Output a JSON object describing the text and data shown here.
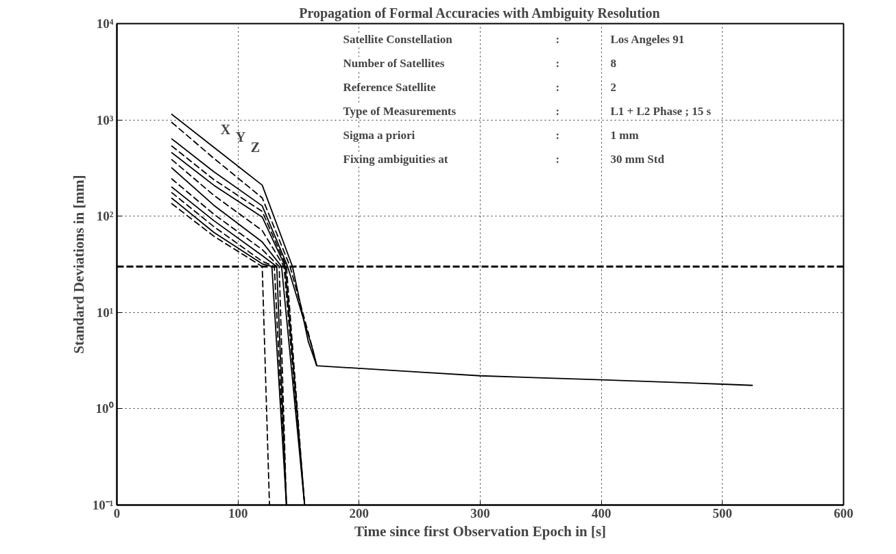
{
  "chart_data": {
    "type": "line",
    "title": "Propagation of Formal Accuracies with Ambiguity Resolution",
    "xlabel": "Time since first Observation Epoch in [s]",
    "ylabel": "Standard Deviations in [mm]",
    "log": "y",
    "xlim": [
      0,
      600
    ],
    "ylim": [
      0.1,
      10000
    ],
    "xticks": [
      0,
      100,
      200,
      300,
      400,
      500,
      600
    ],
    "yticks": [
      {
        "value": 0.1,
        "label": "10⁻¹"
      },
      {
        "value": 1,
        "label": "10⁰"
      },
      {
        "value": 10,
        "label": "10¹"
      },
      {
        "value": 100,
        "label": "10²"
      },
      {
        "value": 1000,
        "label": "10³"
      },
      {
        "value": 10000,
        "label": "10⁴"
      }
    ],
    "grid": true,
    "ref_lines": [
      {
        "axis": "y",
        "value": 30,
        "line_style": "dashed",
        "color": "#000000"
      }
    ],
    "annotations": [
      "X",
      "Y",
      "Z",
      "Satellite Constellation",
      ":",
      "Los Angeles 91",
      "Number of Satellites",
      ":",
      "8",
      "Reference Satellite",
      ":",
      "2",
      "Type of Measurements",
      ":",
      "L1 + L2 Phase ; 15 s",
      "Sigma a priori",
      ":",
      "1 mm",
      "Fixing ambiguities at",
      ":",
      "30 mm Std"
    ],
    "series": [
      {
        "color": "#000000",
        "line_style": "solid",
        "x": [
          45,
          80,
          120,
          145,
          158,
          165,
          250,
          300,
          400,
          500,
          525
        ],
        "values": [
          1150,
          520,
          210,
          30,
          5,
          2.8,
          2.4,
          2.2,
          2.0,
          1.8,
          1.75
        ]
      },
      {
        "color": "#000000",
        "line_style": "dashed",
        "x": [
          45,
          80,
          120,
          143,
          160,
          165
        ],
        "values": [
          950,
          400,
          155,
          30,
          5,
          2.8
        ]
      },
      {
        "color": "#000000",
        "line_style": "solid",
        "x": [
          45,
          80,
          120,
          141,
          162,
          165
        ],
        "values": [
          640,
          290,
          128,
          30,
          4,
          2.8
        ]
      },
      {
        "color": "#000000",
        "line_style": "dashed",
        "x": [
          45,
          80,
          120,
          140,
          155
        ],
        "values": [
          540,
          240,
          112,
          30,
          0.1
        ]
      },
      {
        "color": "#000000",
        "line_style": "solid",
        "x": [
          45,
          80,
          120,
          139,
          155
        ],
        "values": [
          460,
          210,
          98,
          30,
          0.1
        ]
      },
      {
        "color": "#000000",
        "line_style": "dashed",
        "x": [
          45,
          80,
          120,
          138,
          155
        ],
        "values": [
          390,
          165,
          71,
          30,
          0.1
        ]
      },
      {
        "color": "#000000",
        "line_style": "solid",
        "x": [
          45,
          80,
          120,
          136,
          155
        ],
        "values": [
          320,
          130,
          54,
          30,
          0.1
        ]
      },
      {
        "color": "#000000",
        "line_style": "dashed",
        "x": [
          45,
          80,
          120,
          134,
          140
        ],
        "values": [
          246,
          105,
          45,
          30,
          0.1
        ]
      },
      {
        "color": "#000000",
        "line_style": "solid",
        "x": [
          45,
          80,
          120,
          132,
          140
        ],
        "values": [
          202,
          90,
          39,
          30,
          0.1
        ]
      },
      {
        "color": "#000000",
        "line_style": "dashed",
        "x": [
          45,
          80,
          120,
          130,
          140
        ],
        "values": [
          177,
          78,
          34,
          30,
          0.1
        ]
      },
      {
        "color": "#000000",
        "line_style": "solid",
        "x": [
          45,
          80,
          120,
          128,
          140
        ],
        "values": [
          155,
          68,
          32,
          30,
          0.1
        ]
      },
      {
        "color": "#000000",
        "line_style": "dashed",
        "x": [
          45,
          80,
          120,
          126
        ],
        "values": [
          136,
          62,
          30,
          0.1
        ]
      }
    ]
  }
}
